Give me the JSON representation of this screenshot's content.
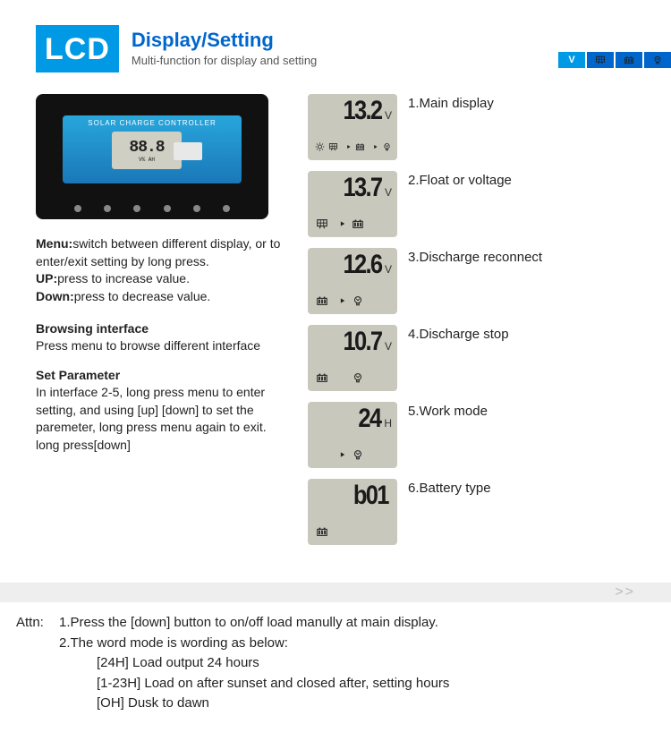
{
  "colors": {
    "brand_blue": "#0099e5",
    "title_blue": "#0066cc",
    "lcd_bg": "#c8c8bd",
    "product_black": "#111111",
    "product_plate_top": "#28a6dc",
    "product_plate_bottom": "#1a77b8",
    "chev_bg": "#eeeeee",
    "chev_fg": "#bbbbbb"
  },
  "header": {
    "badge": "LCD",
    "title": "Display/Setting",
    "subtitle": "Multi-function for display and setting",
    "strip_v": "V"
  },
  "product": {
    "label": "SOLAR CHARGE CONTROLLER",
    "lcd_value": "88.8",
    "lcd_units": "V% AH"
  },
  "defs": {
    "menu_label": "Menu:",
    "menu_text": "switch between different display, or to enter/exit setting by long press.",
    "up_label": "UP:",
    "up_text": "press to increase value.",
    "down_label": "Down:",
    "down_text": "press to decrease value."
  },
  "sections": {
    "browse_head": "Browsing interface",
    "browse_body": "Press menu to browse different interface",
    "set_head": "Set Parameter",
    "set_body": "In interface 2-5, long press menu to enter setting, and using [up] [down] to set the paremeter, long press menu again to exit. long press[down]"
  },
  "cards": [
    {
      "value": "13.2",
      "unit": "V",
      "label": "1.Main display",
      "icons": [
        "sun",
        "panel",
        "arrow",
        "battery",
        "arrow",
        "bulb"
      ]
    },
    {
      "value": "13.7",
      "unit": "V",
      "label": "2.Float or voltage",
      "icons": [
        "panel",
        "arrow",
        "battery"
      ]
    },
    {
      "value": "12.6",
      "unit": "V",
      "label": "3.Discharge reconnect",
      "icons": [
        "battery",
        "arrow",
        "bulb"
      ]
    },
    {
      "value": "10.7",
      "unit": "V",
      "label": "4.Discharge stop",
      "icons": [
        "battery",
        "space",
        "bulb"
      ]
    },
    {
      "value": "24",
      "unit": "H",
      "label": "5.Work mode",
      "icons": [
        "space",
        "arrow",
        "bulb"
      ]
    },
    {
      "value": "b01",
      "unit": "",
      "label": "6.Battery type",
      "icons": [
        "battery"
      ]
    }
  ],
  "chevrons": ">>",
  "attn": {
    "label": "Attn:",
    "line1": "1.Press the [down] button to on/off load manully at main display.",
    "line2": "2.The word mode is wording as below:",
    "sub1": "[24H] Load output 24 hours",
    "sub2": "[1-23H] Load on after sunset and closed after, setting hours",
    "sub3": "[OH] Dusk to dawn"
  }
}
